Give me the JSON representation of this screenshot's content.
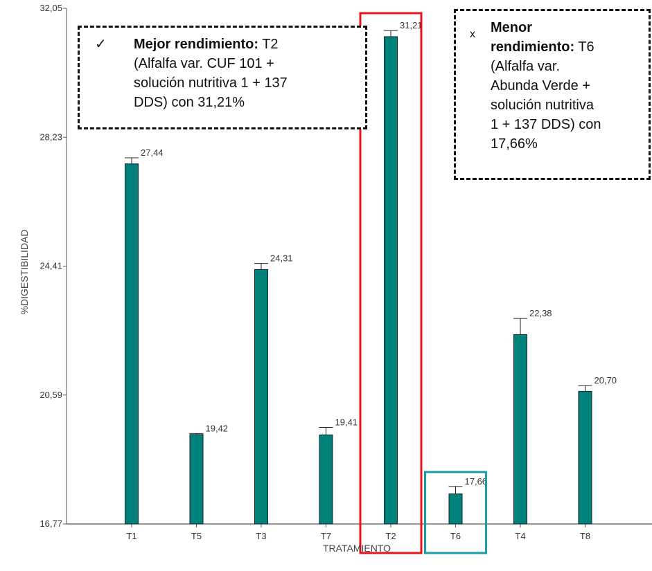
{
  "chart_data": {
    "type": "bar",
    "xlabel": "TRATAMIENTO",
    "ylabel": "%DIGESTIBILIDAD",
    "ylim": [
      16.77,
      32.05
    ],
    "yticks": [
      "16,77",
      "20,59",
      "24,41",
      "28,23",
      "32,05"
    ],
    "ytick_values": [
      16.77,
      20.59,
      24.41,
      28.23,
      32.05
    ],
    "categories": [
      "T1",
      "T5",
      "T3",
      "T7",
      "T2",
      "T6",
      "T4",
      "T8"
    ],
    "values": [
      27.44,
      19.42,
      24.31,
      19.41,
      31.21,
      17.66,
      22.38,
      20.7
    ],
    "errors": [
      0.18,
      0.03,
      0.18,
      0.22,
      0.18,
      0.22,
      0.48,
      0.17
    ],
    "value_labels": [
      "27,44",
      "19,42",
      "24,31",
      "19,41",
      "31,21",
      "17,66",
      "22,38",
      "20,70"
    ],
    "bar_color": "#00827b",
    "highlights": [
      {
        "category": "T2",
        "color": "#e8141b"
      },
      {
        "category": "T6",
        "color": "#1a9ea6"
      }
    ]
  },
  "notes": {
    "best": {
      "mark": "✓",
      "bold": "Mejor rendimiento:",
      "line1_rest": " T2",
      "line2": "(Alfalfa var. CUF 101 +",
      "line3": "solución nutritiva 1 + 137",
      "line4": "DDS) con 31,21%"
    },
    "worst": {
      "mark": "x",
      "bold1": "Menor",
      "bold2": "rendimiento:",
      "line2_rest": " T6",
      "line3": "(Alfalfa var.",
      "line4": "Abunda Verde +",
      "line5": "solución nutritiva",
      "line6": "1 + 137 DDS) con",
      "line7": "17,66%"
    }
  }
}
